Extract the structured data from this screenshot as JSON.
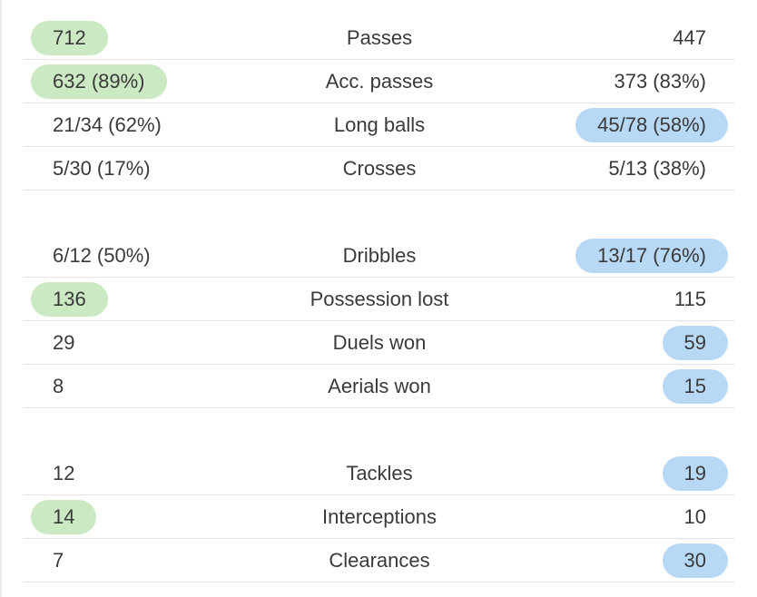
{
  "groups": [
    {
      "rows": [
        {
          "left": "712",
          "label": "Passes",
          "right": "447",
          "highlight": "left"
        },
        {
          "left": "632 (89%)",
          "label": "Acc. passes",
          "right": "373 (83%)",
          "highlight": "left"
        },
        {
          "left": "21/34 (62%)",
          "label": "Long balls",
          "right": "45/78 (58%)",
          "highlight": "right"
        },
        {
          "left": "5/30 (17%)",
          "label": "Crosses",
          "right": "5/13 (38%)",
          "highlight": "none"
        }
      ]
    },
    {
      "rows": [
        {
          "left": "6/12 (50%)",
          "label": "Dribbles",
          "right": "13/17 (76%)",
          "highlight": "right"
        },
        {
          "left": "136",
          "label": "Possession lost",
          "right": "115",
          "highlight": "left"
        },
        {
          "left": "29",
          "label": "Duels won",
          "right": "59",
          "highlight": "right"
        },
        {
          "left": "8",
          "label": "Aerials won",
          "right": "15",
          "highlight": "right"
        }
      ]
    },
    {
      "rows": [
        {
          "left": "12",
          "label": "Tackles",
          "right": "19",
          "highlight": "right"
        },
        {
          "left": "14",
          "label": "Interceptions",
          "right": "10",
          "highlight": "left"
        },
        {
          "left": "7",
          "label": "Clearances",
          "right": "30",
          "highlight": "right"
        }
      ]
    }
  ],
  "colors": {
    "home_highlight": "#cbe9c2",
    "away_highlight": "#b8d9f5"
  }
}
